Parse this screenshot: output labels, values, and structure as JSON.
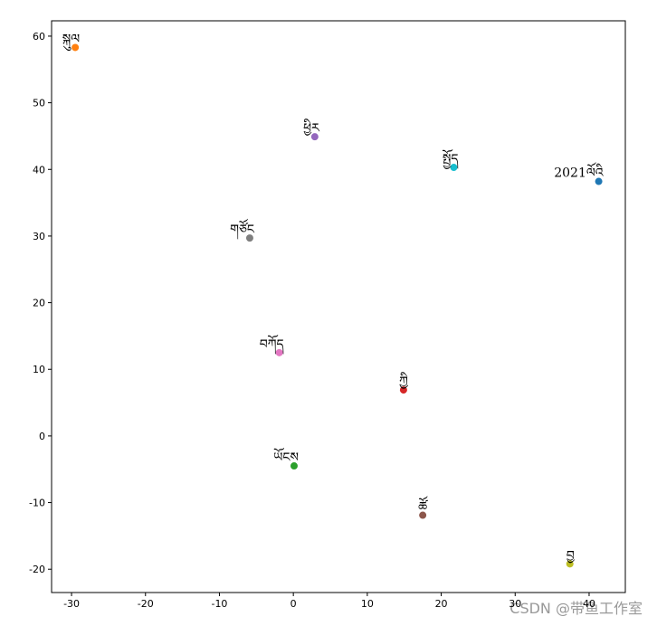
{
  "chart_data": {
    "type": "scatter",
    "points": [
      {
        "label": "2021ལོའི",
        "x": 41.3,
        "y": 38.2,
        "color": "#1f77b4"
      },
      {
        "label": "སྐུལ",
        "x": -29.5,
        "y": 58.3,
        "color": "#ff7f0e"
      },
      {
        "label": "ཡོངས",
        "x": 0.1,
        "y": -4.5,
        "color": "#2ca02c"
      },
      {
        "label": "ཀྱི",
        "x": 14.9,
        "y": 6.9,
        "color": "#d62728"
      },
      {
        "label": "ཕྱིར",
        "x": 2.9,
        "y": 44.9,
        "color": "#9467bd"
      },
      {
        "label": "ཚོ",
        "x": 17.5,
        "y": -11.9,
        "color": "#8c564b"
      },
      {
        "label": "བཀོད",
        "x": -1.9,
        "y": 12.5,
        "color": "#e377c2"
      },
      {
        "label": "གཙོང",
        "x": -5.9,
        "y": 29.7,
        "color": "#7f7f7f"
      },
      {
        "label": "བྱ",
        "x": 37.4,
        "y": -19.2,
        "color": "#bcbd22"
      },
      {
        "label": "སྤྱོད",
        "x": 21.7,
        "y": 40.3,
        "color": "#17becf"
      }
    ],
    "xlim": [
      -32.7,
      44.9
    ],
    "xticks": [
      -30,
      -20,
      -10,
      0,
      10,
      20,
      30,
      40
    ],
    "ylim": [
      -23.5,
      62.3
    ],
    "yticks": [
      -20,
      -10,
      0,
      10,
      20,
      30,
      40,
      50,
      60
    ],
    "watermark": "CSDN @带鱼工作室"
  }
}
